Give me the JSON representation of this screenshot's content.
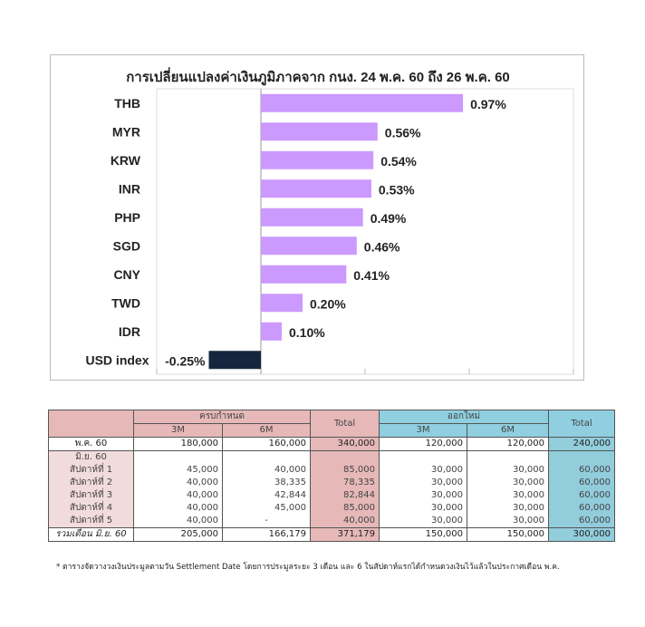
{
  "chart_data": {
    "type": "bar",
    "orientation": "horizontal",
    "title": "การเปลี่ยนแปลงค่าเงินภูมิภาคจาก กนง. 24 พ.ค. 60 ถึง 26 พ.ค. 60",
    "categories": [
      "THB",
      "MYR",
      "KRW",
      "INR",
      "PHP",
      "SGD",
      "CNY",
      "TWD",
      "IDR",
      "USD index"
    ],
    "values": [
      0.97,
      0.56,
      0.54,
      0.53,
      0.49,
      0.46,
      0.41,
      0.2,
      0.1,
      -0.25
    ],
    "labels": [
      "0.97%",
      "0.56%",
      "0.54%",
      "0.53%",
      "0.49%",
      "0.46%",
      "0.41%",
      "0.20%",
      "0.10%",
      "-0.25%"
    ],
    "unit": "%",
    "xlim": [
      -0.5,
      1.5
    ],
    "grid": true,
    "colors": {
      "positive": "#cc99ff",
      "negative": "#17263f"
    }
  },
  "table": {
    "group1": "ครบกำหนด",
    "group2": "ออกใหม่",
    "total": "Total",
    "m3": "3M",
    "m6": "6M",
    "may_row": {
      "label": "พ.ค. 60",
      "values": [
        "180,000",
        "160,000",
        "340,000",
        "120,000",
        "120,000",
        "240,000"
      ]
    },
    "june_label": "มิ.ย. 60",
    "weeks": [
      {
        "label": "สัปดาห์ที่ 1",
        "values": [
          "45,000",
          "40,000",
          "85,000",
          "30,000",
          "30,000",
          "60,000"
        ]
      },
      {
        "label": "สัปดาห์ที่ 2",
        "values": [
          "40,000",
          "38,335",
          "78,335",
          "30,000",
          "30,000",
          "60,000"
        ]
      },
      {
        "label": "สัปดาห์ที่ 3",
        "values": [
          "40,000",
          "42,844",
          "82,844",
          "30,000",
          "30,000",
          "60,000"
        ]
      },
      {
        "label": "สัปดาห์ที่ 4",
        "values": [
          "40,000",
          "45,000",
          "85,000",
          "30,000",
          "30,000",
          "60,000"
        ]
      },
      {
        "label": "สัปดาห์ที่ 5",
        "values": [
          "40,000",
          "-",
          "40,000",
          "30,000",
          "30,000",
          "60,000"
        ]
      }
    ],
    "total_row": {
      "label": "รวมเดือน มิ.ย. 60",
      "values": [
        "205,000",
        "166,179",
        "371,179",
        "150,000",
        "150,000",
        "300,000"
      ]
    }
  },
  "footnote": "* ตารางจัดวางวงเงินประมูลตามวัน Settlement Date โดยการประมูลระยะ 3 เดือน และ 6 ในสัปดาห์แรกได้กำหนดวงเงินไว้แล้วในประกาศเดือน พ.ค."
}
